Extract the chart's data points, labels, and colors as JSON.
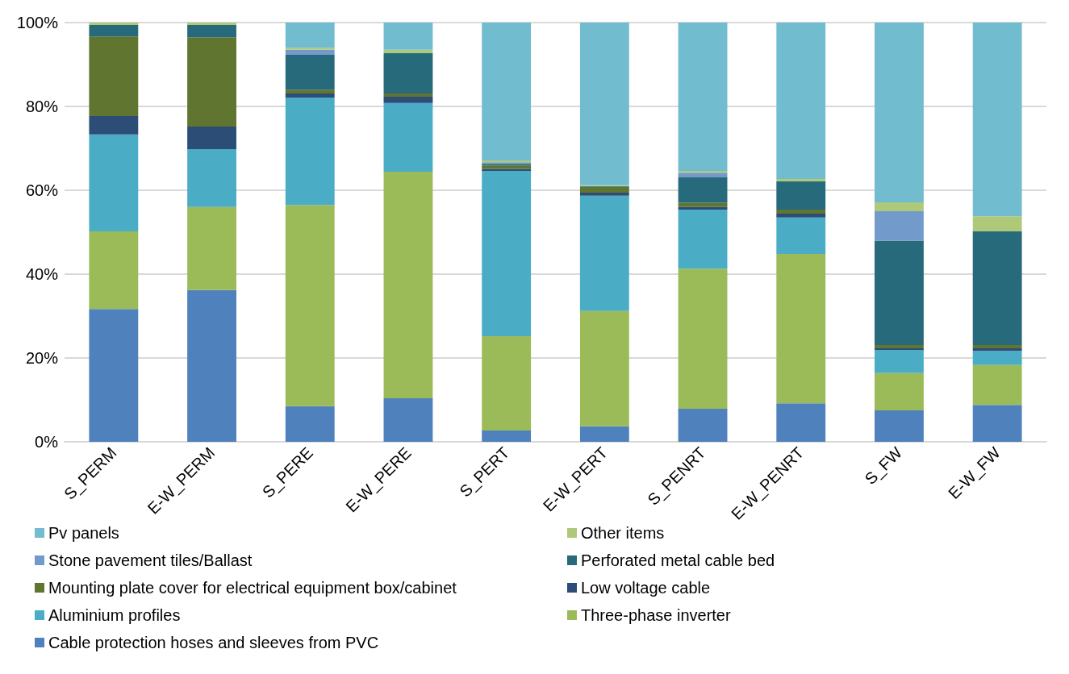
{
  "chart_data": {
    "type": "bar",
    "stacked": true,
    "categories": [
      "S_PERM",
      "E-W_PERM",
      "S_PERE",
      "E-W_PERE",
      "S_PERT",
      "E-W_PERT",
      "S_PENRT",
      "E-W_PENRT",
      "S_FW",
      "E-W_FW"
    ],
    "ylim": [
      0,
      100
    ],
    "yticks": [
      {
        "value": 0,
        "label": "0%"
      },
      {
        "value": 20,
        "label": "20%"
      },
      {
        "value": 40,
        "label": "40%"
      },
      {
        "value": 60,
        "label": "60%"
      },
      {
        "value": 80,
        "label": "80%"
      },
      {
        "value": 100,
        "label": "100%"
      }
    ],
    "grid": "y",
    "legend": "bottom",
    "series": [
      {
        "name": "Cable protection hoses and sleeves from PVC",
        "color": "#4f81bd",
        "values": [
          31.7,
          36.2,
          8.5,
          10.4,
          2.7,
          3.7,
          7.9,
          9.2,
          7.5,
          8.8
        ]
      },
      {
        "name": "Three-phase inverter",
        "color": "#9bbb59",
        "values": [
          18.5,
          19.8,
          48.0,
          54.0,
          22.5,
          27.5,
          33.4,
          35.6,
          8.9,
          9.5
        ]
      },
      {
        "name": "Aluminium profiles",
        "color": "#4bacc6",
        "values": [
          23.1,
          13.8,
          25.6,
          16.4,
          39.4,
          27.5,
          14.1,
          8.7,
          5.5,
          3.4
        ]
      },
      {
        "name": "Low voltage cable",
        "color": "#2c4d75",
        "values": [
          4.4,
          5.4,
          1.0,
          1.5,
          0.5,
          0.7,
          0.6,
          0.9,
          0.4,
          0.6
        ]
      },
      {
        "name": "Mounting plate cover for electrical equipment box/cabinet",
        "color": "#5f7530",
        "values": [
          19.0,
          21.3,
          0.9,
          0.8,
          0.8,
          1.4,
          1.0,
          1.0,
          0.8,
          0.8
        ]
      },
      {
        "name": "Perforated metal cable bed",
        "color": "#276a7c",
        "values": [
          2.7,
          2.9,
          8.3,
          9.6,
          0.4,
          0.2,
          6.1,
          6.7,
          24.9,
          27.1
        ]
      },
      {
        "name": "Stone pavement tiles/Ballast",
        "color": "#729aca",
        "values": [
          0,
          0,
          1.2,
          0,
          0.4,
          0,
          1.1,
          0,
          7.0,
          0
        ]
      },
      {
        "name": "Other items",
        "color": "#afc97a",
        "values": [
          0.6,
          0.6,
          0.5,
          0.8,
          0.4,
          0.2,
          0.4,
          0.6,
          2.1,
          3.6
        ]
      },
      {
        "name": "Pv panels",
        "color": "#72bcd0",
        "values": [
          0,
          0,
          6.0,
          6.5,
          32.9,
          38.8,
          35.4,
          37.3,
          42.9,
          46.2
        ]
      }
    ]
  }
}
